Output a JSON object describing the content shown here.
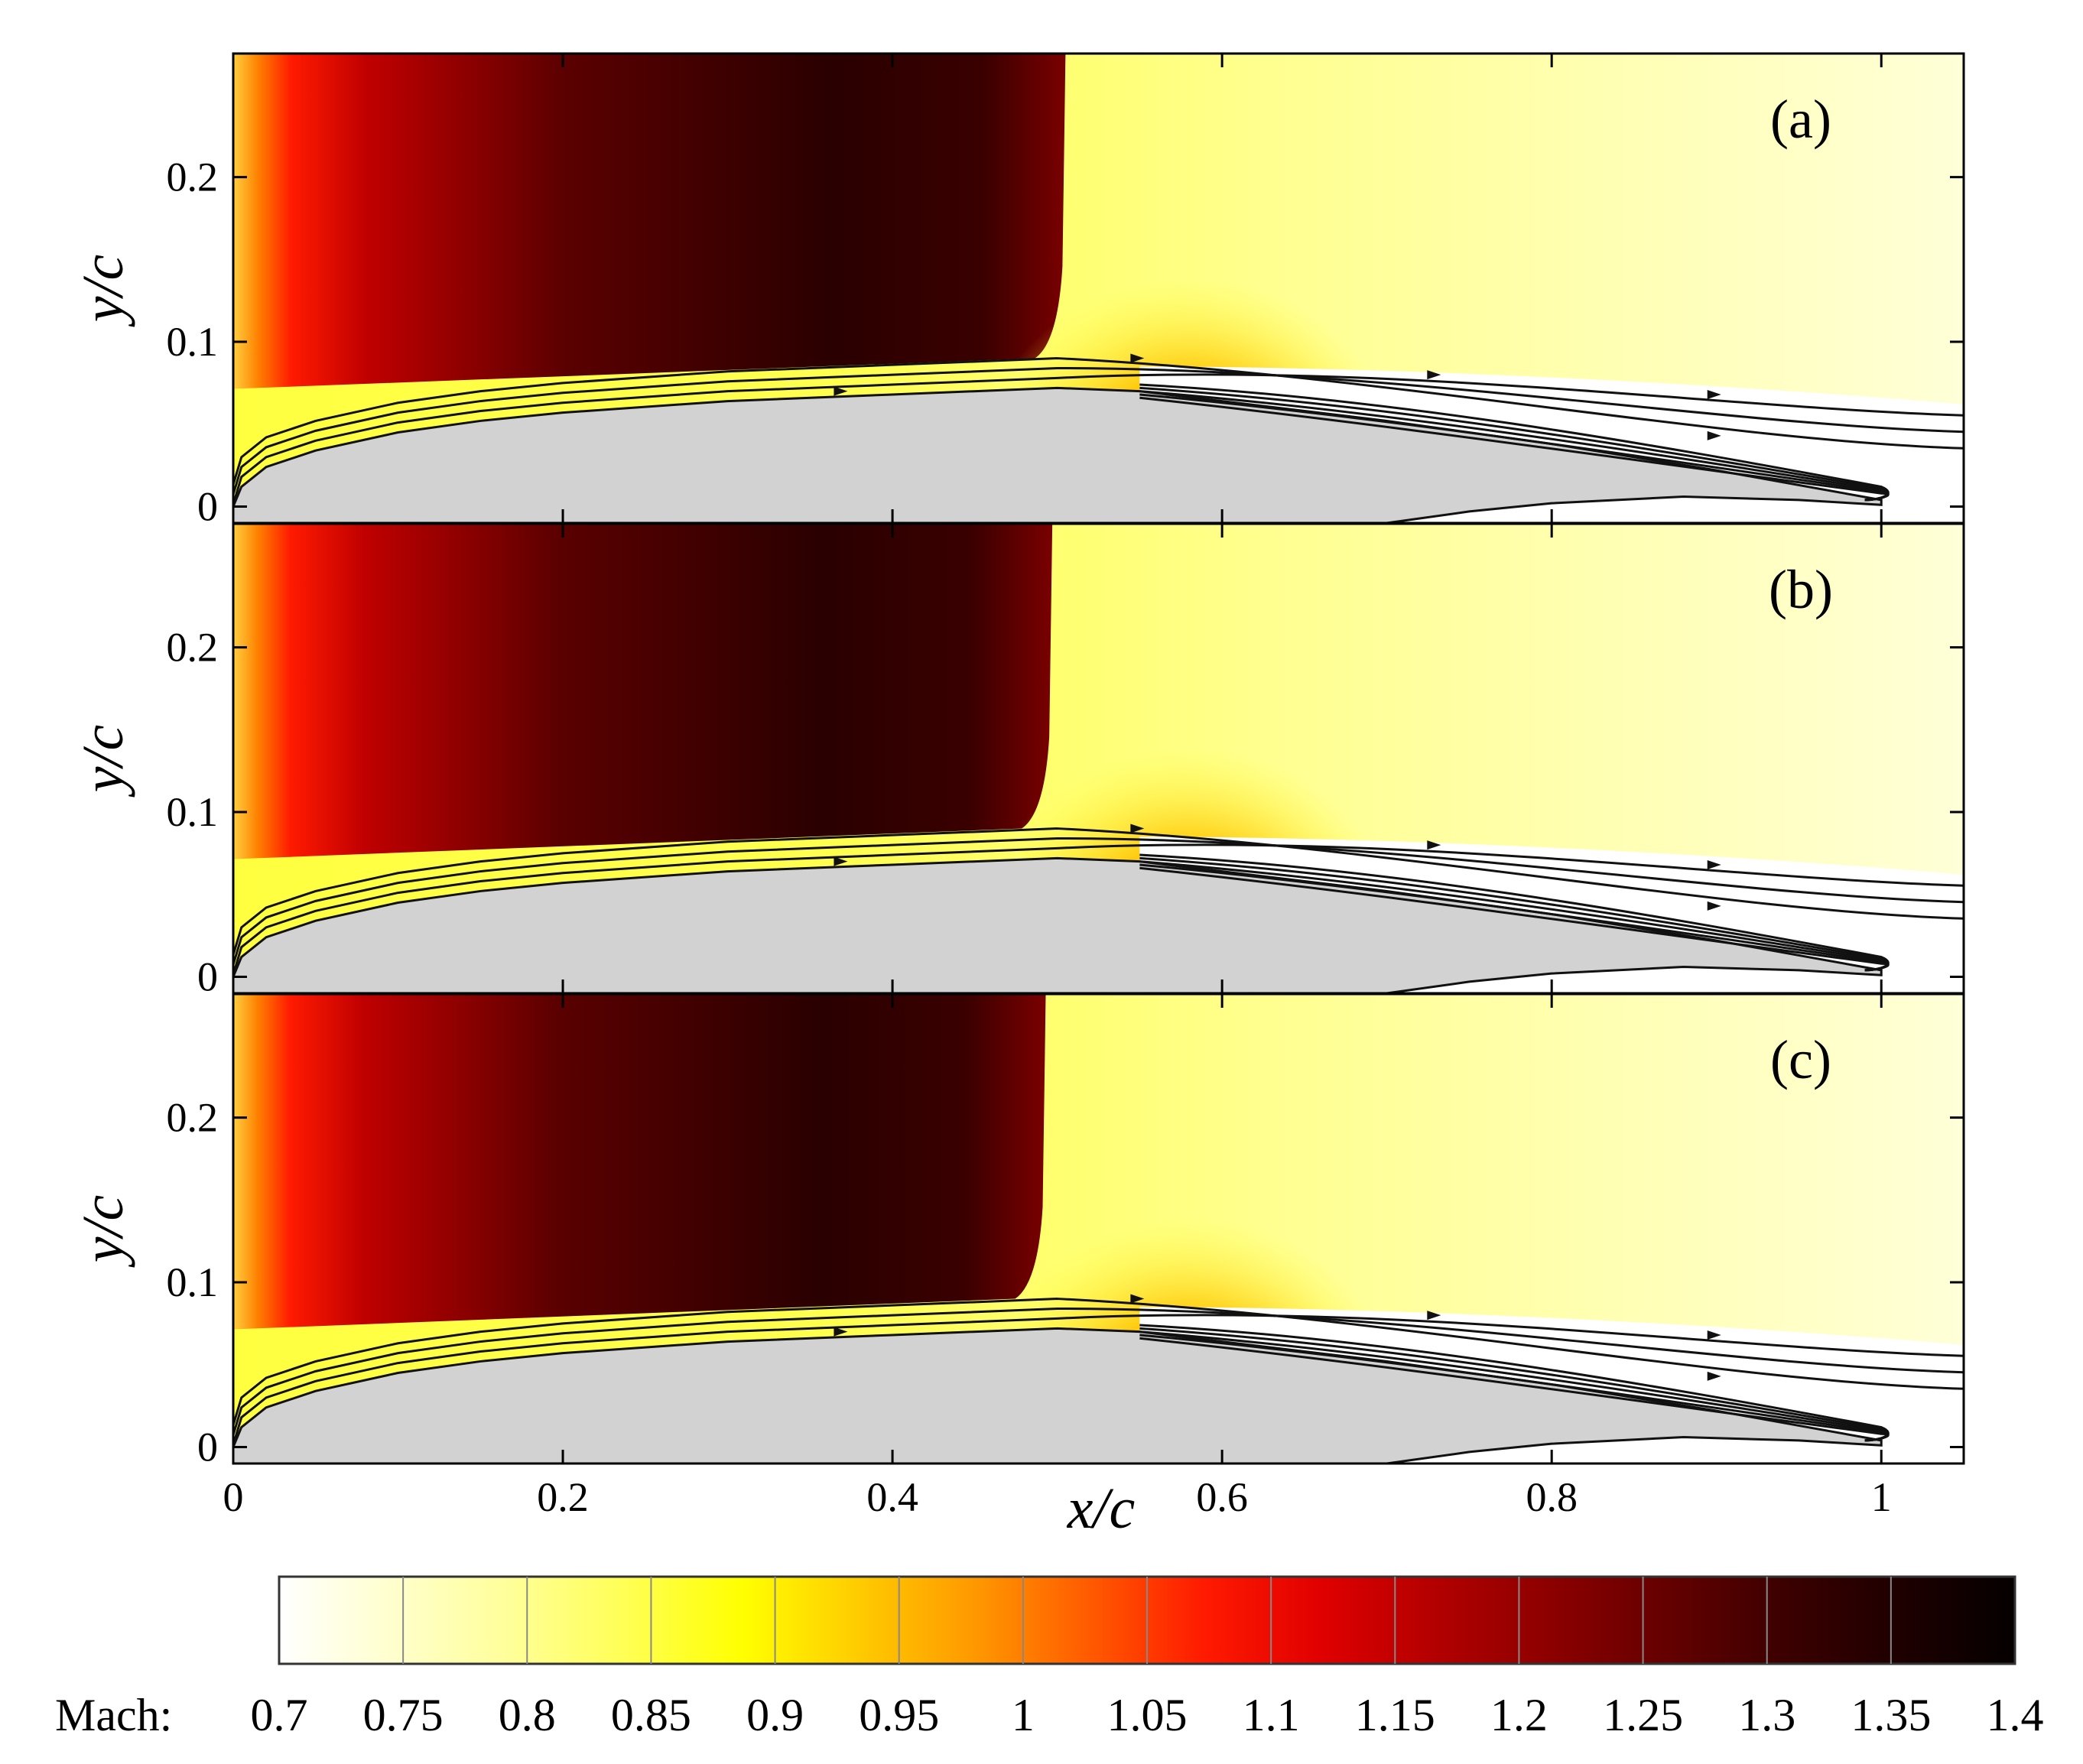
{
  "chart_data": {
    "type": "heatmap",
    "xlabel": "x/c",
    "ylabel": "y/c",
    "xlim": [
      0,
      1.05
    ],
    "ylim": [
      -0.01,
      0.275
    ],
    "xticks": [
      0,
      0.2,
      0.4,
      0.6,
      0.8,
      1
    ],
    "xtick_labels": [
      "0",
      "0.2",
      "0.4",
      "0.6",
      "0.8",
      "1"
    ],
    "yticks": [
      0,
      0.1,
      0.2
    ],
    "ytick_labels": [
      "0",
      "0.1",
      "0.2"
    ],
    "grid": false,
    "panels": [
      {
        "label": "(a)",
        "shock_x": 0.505
      },
      {
        "label": "(b)",
        "shock_x": 0.497
      },
      {
        "label": "(c)",
        "shock_x": 0.493
      }
    ],
    "airfoil_upper": [
      [
        0,
        0
      ],
      [
        0.005,
        0.012
      ],
      [
        0.02,
        0.024
      ],
      [
        0.05,
        0.034
      ],
      [
        0.1,
        0.045
      ],
      [
        0.15,
        0.052
      ],
      [
        0.2,
        0.057
      ],
      [
        0.3,
        0.064
      ],
      [
        0.4,
        0.068
      ],
      [
        0.5,
        0.072
      ],
      [
        0.55,
        0.07
      ],
      [
        0.6,
        0.064
      ],
      [
        0.7,
        0.052
      ],
      [
        0.8,
        0.038
      ],
      [
        0.9,
        0.022
      ],
      [
        1,
        0.004
      ]
    ],
    "airfoil_lower_end": [
      [
        0.7,
        -0.01
      ],
      [
        0.75,
        -0.003
      ],
      [
        0.8,
        0.002
      ],
      [
        0.88,
        0.006
      ],
      [
        0.95,
        0.004
      ],
      [
        1,
        0.001
      ]
    ],
    "colorbar": {
      "label": "Mach:",
      "min": 0.7,
      "max": 1.4,
      "levels": [
        "0.7",
        "0.75",
        "0.8",
        "0.85",
        "0.9",
        "0.95",
        "1",
        "1.05",
        "1.1",
        "1.15",
        "1.2",
        "1.25",
        "1.3",
        "1.35",
        "1.4"
      ],
      "colors": [
        "#ffffff",
        "#ffffcc",
        "#ffff99",
        "#ffff55",
        "#ffff00",
        "#ffcc00",
        "#ff9900",
        "#ff5a00",
        "#ff1a00",
        "#e00000",
        "#b20000",
        "#8c0000",
        "#640000",
        "#3c0000",
        "#1e0000",
        "#050000"
      ]
    }
  }
}
